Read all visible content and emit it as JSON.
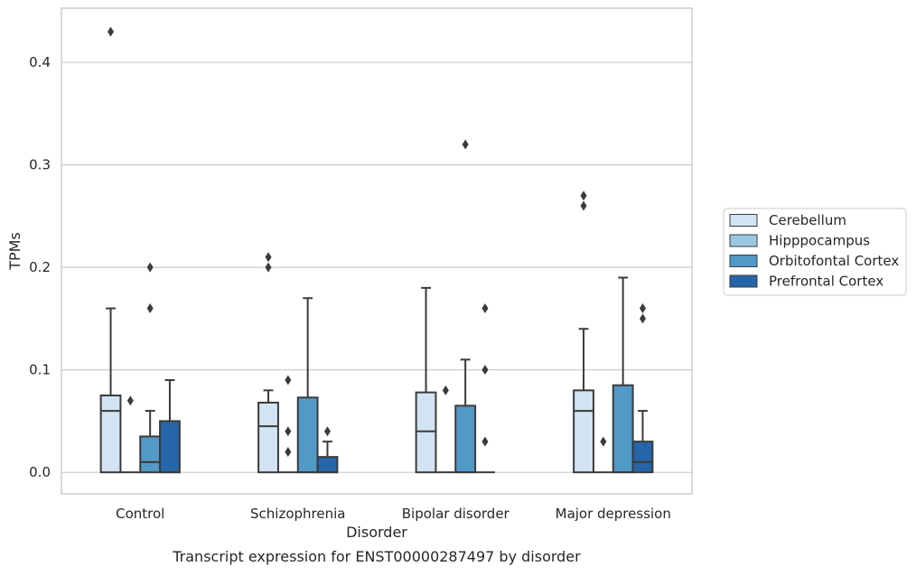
{
  "chart_data": {
    "type": "boxplot",
    "title": "",
    "caption": "Transcript expression for ENST00000287497 by disorder",
    "xlabel": "Disorder",
    "ylabel": "TPMs",
    "ylim": [
      -0.021,
      0.453
    ],
    "yticks": [
      0.0,
      0.1,
      0.2,
      0.3,
      0.4
    ],
    "ytick_labels": [
      "0.0",
      "0.1",
      "0.2",
      "0.3",
      "0.4"
    ],
    "grid": "horizontal",
    "legend_position": "right",
    "categories": [
      "Control",
      "Schizophrenia",
      "Bipolar disorder",
      "Major depression"
    ],
    "series": [
      {
        "name": "Cerebellum",
        "color": "#d2e3f3",
        "boxes": [
          {
            "q1": 0.0,
            "median": 0.06,
            "q3": 0.075,
            "whisker_low": 0.0,
            "whisker_high": 0.16,
            "outliers": [
              0.43
            ]
          },
          {
            "q1": 0.0,
            "median": 0.045,
            "q3": 0.068,
            "whisker_low": 0.0,
            "whisker_high": 0.08,
            "outliers": [
              0.2,
              0.21
            ]
          },
          {
            "q1": 0.0,
            "median": 0.04,
            "q3": 0.078,
            "whisker_low": 0.0,
            "whisker_high": 0.18,
            "outliers": []
          },
          {
            "q1": 0.0,
            "median": 0.06,
            "q3": 0.08,
            "whisker_low": 0.0,
            "whisker_high": 0.14,
            "outliers": [
              0.26,
              0.27
            ]
          }
        ]
      },
      {
        "name": "Hipppocampus",
        "color": "#9ac8e0",
        "boxes": [
          {
            "q1": 0.0,
            "median": 0.0,
            "q3": 0.0,
            "whisker_low": 0.0,
            "whisker_high": 0.0,
            "outliers": [
              0.07
            ]
          },
          {
            "q1": 0.0,
            "median": 0.0,
            "q3": 0.0,
            "whisker_low": 0.0,
            "whisker_high": 0.0,
            "outliers": [
              0.02,
              0.04,
              0.09
            ]
          },
          {
            "q1": 0.0,
            "median": 0.0,
            "q3": 0.0,
            "whisker_low": 0.0,
            "whisker_high": 0.0,
            "outliers": [
              0.08
            ]
          },
          {
            "q1": 0.0,
            "median": 0.0,
            "q3": 0.0,
            "whisker_low": 0.0,
            "whisker_high": 0.0,
            "outliers": [
              0.03
            ]
          }
        ]
      },
      {
        "name": "Orbitofontal Cortex",
        "color": "#5199c7",
        "boxes": [
          {
            "q1": 0.0,
            "median": 0.01,
            "q3": 0.035,
            "whisker_low": 0.0,
            "whisker_high": 0.06,
            "outliers": [
              0.16,
              0.2
            ]
          },
          {
            "q1": 0.0,
            "median": 0.0,
            "q3": 0.073,
            "whisker_low": 0.0,
            "whisker_high": 0.17,
            "outliers": []
          },
          {
            "q1": 0.0,
            "median": 0.0,
            "q3": 0.065,
            "whisker_low": 0.0,
            "whisker_high": 0.11,
            "outliers": [
              0.32
            ]
          },
          {
            "q1": 0.0,
            "median": 0.0,
            "q3": 0.085,
            "whisker_low": 0.0,
            "whisker_high": 0.19,
            "outliers": []
          }
        ]
      },
      {
        "name": "Prefrontal Cortex",
        "color": "#2565a8",
        "boxes": [
          {
            "q1": 0.0,
            "median": 0.0,
            "q3": 0.05,
            "whisker_low": 0.0,
            "whisker_high": 0.09,
            "outliers": []
          },
          {
            "q1": 0.0,
            "median": 0.0,
            "q3": 0.015,
            "whisker_low": 0.0,
            "whisker_high": 0.03,
            "outliers": [
              0.04
            ]
          },
          {
            "q1": 0.0,
            "median": 0.0,
            "q3": 0.0,
            "whisker_low": 0.0,
            "whisker_high": 0.0,
            "outliers": [
              0.03,
              0.1,
              0.16
            ]
          },
          {
            "q1": 0.0,
            "median": 0.01,
            "q3": 0.03,
            "whisker_low": 0.0,
            "whisker_high": 0.06,
            "outliers": [
              0.15,
              0.16
            ]
          }
        ]
      }
    ]
  }
}
